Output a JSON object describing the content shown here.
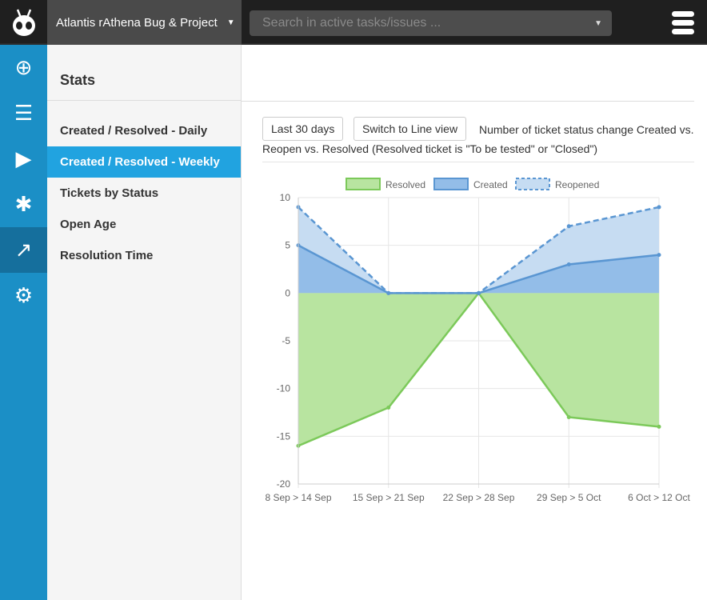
{
  "header": {
    "project": "Atlantis rAthena Bug & Project",
    "search_placeholder": "Search in active tasks/issues ..."
  },
  "sidebar": {
    "title": "Stats",
    "items": [
      {
        "label": "Created / Resolved - Daily"
      },
      {
        "label": "Created / Resolved - Weekly"
      },
      {
        "label": "Tickets by Status"
      },
      {
        "label": "Open Age"
      },
      {
        "label": "Resolution Time"
      }
    ]
  },
  "main": {
    "range_button": "Last 30 days",
    "switch_button": "Switch to Line view",
    "description": "Number of ticket status change Created vs. Reopen vs. Resolved (Resolved ticket is \"To be tested\" or \"Closed\")"
  },
  "chart_data": {
    "type": "area",
    "categories": [
      "8 Sep > 14 Sep",
      "15 Sep > 21 Sep",
      "22 Sep > 28 Sep",
      "29 Sep > 5 Oct",
      "6 Oct > 12 Oct"
    ],
    "stacked": true,
    "series": [
      {
        "name": "Resolved",
        "values": [
          -16,
          -12,
          0,
          -13,
          -14
        ],
        "color": "#7cc95a"
      },
      {
        "name": "Created",
        "values": [
          5,
          0,
          0,
          3,
          4
        ],
        "color": "#5a96d2"
      },
      {
        "name": "Reopened",
        "values": [
          4,
          0,
          0,
          4,
          5
        ],
        "color": "#5a96d2",
        "dashed": true
      }
    ],
    "ylim": [
      -20,
      10
    ],
    "yticks": [
      10,
      5,
      0,
      -5,
      -10,
      -15,
      -20
    ],
    "legend": "top",
    "grid": true
  }
}
